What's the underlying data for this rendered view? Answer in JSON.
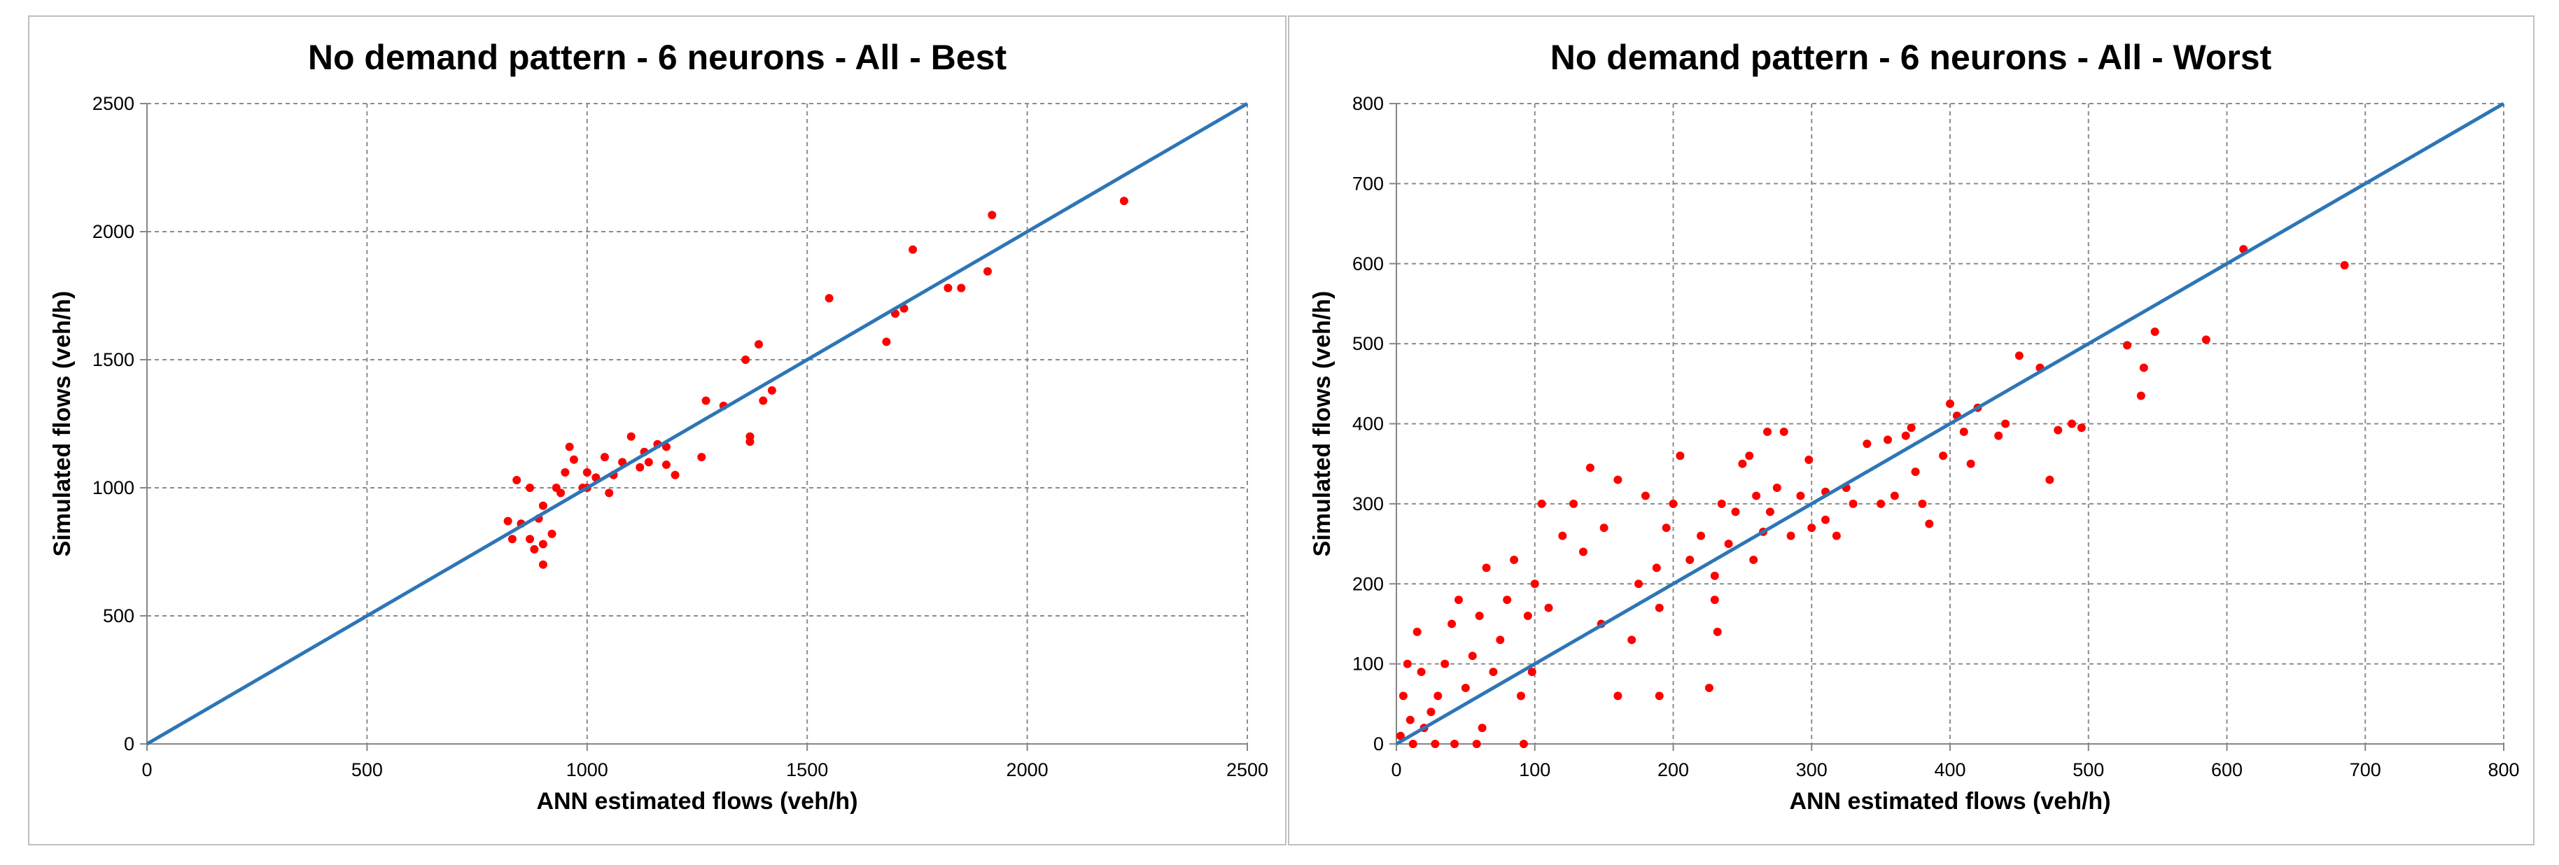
{
  "chart_data": [
    {
      "type": "scatter",
      "title": "No demand pattern - 6 neurons - All - Best",
      "xlabel": "ANN estimated flows (veh/h)",
      "ylabel": "Simulated flows (veh/h)",
      "xlim": [
        0,
        2500
      ],
      "ylim": [
        0,
        2500
      ],
      "xticks": [
        "0",
        "500",
        "1000",
        "1500",
        "2000",
        "2500"
      ],
      "yticks": [
        "0",
        "500",
        "1000",
        "1500",
        "2000",
        "2500"
      ],
      "grid": true,
      "legend": "none",
      "line": {
        "x": [
          0,
          2500
        ],
        "y": [
          0,
          2500
        ],
        "color": "#2e75b6"
      },
      "point_color": "#ff0000",
      "points": [
        [
          2220,
          2120
        ],
        [
          1920,
          2065
        ],
        [
          1740,
          1930
        ],
        [
          1910,
          1845
        ],
        [
          1850,
          1780
        ],
        [
          1820,
          1780
        ],
        [
          1720,
          1700
        ],
        [
          1700,
          1680
        ],
        [
          1680,
          1570
        ],
        [
          1550,
          1740
        ],
        [
          1390,
          1560
        ],
        [
          1360,
          1500
        ],
        [
          1420,
          1380
        ],
        [
          1400,
          1340
        ],
        [
          1370,
          1200
        ],
        [
          1370,
          1180
        ],
        [
          1310,
          1320
        ],
        [
          1270,
          1340
        ],
        [
          1180,
          1160
        ],
        [
          1160,
          1170
        ],
        [
          1140,
          1100
        ],
        [
          1130,
          1140
        ],
        [
          1100,
          1200
        ],
        [
          1080,
          1100
        ],
        [
          1060,
          1050
        ],
        [
          1040,
          1120
        ],
        [
          1020,
          1040
        ],
        [
          1000,
          1060
        ],
        [
          990,
          1000
        ],
        [
          970,
          1110
        ],
        [
          960,
          1160
        ],
        [
          950,
          1060
        ],
        [
          930,
          1000
        ],
        [
          900,
          930
        ],
        [
          890,
          880
        ],
        [
          870,
          1000
        ],
        [
          850,
          860
        ],
        [
          840,
          1030
        ],
        [
          830,
          800
        ],
        [
          820,
          870
        ],
        [
          900,
          780
        ],
        [
          870,
          800
        ],
        [
          920,
          820
        ],
        [
          900,
          700
        ],
        [
          880,
          760
        ],
        [
          1000,
          1000
        ],
        [
          1050,
          980
        ],
        [
          1120,
          1080
        ],
        [
          1180,
          1090
        ],
        [
          1200,
          1050
        ],
        [
          1260,
          1120
        ],
        [
          940,
          980
        ]
      ]
    },
    {
      "type": "scatter",
      "title": "No demand pattern - 6 neurons - All - Worst",
      "xlabel": "ANN estimated flows (veh/h)",
      "ylabel": "Simulated flows (veh/h)",
      "xlim": [
        0,
        800
      ],
      "ylim": [
        0,
        800
      ],
      "xticks": [
        "0",
        "100",
        "200",
        "300",
        "400",
        "500",
        "600",
        "700",
        "800"
      ],
      "yticks": [
        "0",
        "100",
        "200",
        "300",
        "400",
        "500",
        "600",
        "700",
        "800"
      ],
      "grid": true,
      "legend": "none",
      "line": {
        "x": [
          0,
          800
        ],
        "y": [
          0,
          800
        ],
        "color": "#2e75b6"
      },
      "point_color": "#ff0000",
      "points": [
        [
          685,
          598
        ],
        [
          612,
          618
        ],
        [
          585,
          505
        ],
        [
          548,
          515
        ],
        [
          528,
          498
        ],
        [
          540,
          470
        ],
        [
          538,
          435
        ],
        [
          495,
          395
        ],
        [
          488,
          400
        ],
        [
          478,
          392
        ],
        [
          472,
          330
        ],
        [
          465,
          470
        ],
        [
          450,
          485
        ],
        [
          440,
          400
        ],
        [
          435,
          385
        ],
        [
          420,
          420
        ],
        [
          415,
          350
        ],
        [
          410,
          390
        ],
        [
          405,
          410
        ],
        [
          400,
          425
        ],
        [
          395,
          360
        ],
        [
          385,
          275
        ],
        [
          380,
          300
        ],
        [
          375,
          340
        ],
        [
          372,
          395
        ],
        [
          368,
          385
        ],
        [
          360,
          310
        ],
        [
          355,
          380
        ],
        [
          340,
          375
        ],
        [
          330,
          300
        ],
        [
          325,
          320
        ],
        [
          318,
          260
        ],
        [
          310,
          315
        ],
        [
          300,
          270
        ],
        [
          298,
          355
        ],
        [
          292,
          310
        ],
        [
          285,
          260
        ],
        [
          280,
          390
        ],
        [
          275,
          320
        ],
        [
          270,
          290
        ],
        [
          268,
          390
        ],
        [
          265,
          265
        ],
        [
          260,
          310
        ],
        [
          258,
          230
        ],
        [
          255,
          360
        ],
        [
          250,
          350
        ],
        [
          245,
          290
        ],
        [
          240,
          250
        ],
        [
          235,
          300
        ],
        [
          232,
          140
        ],
        [
          230,
          210
        ],
        [
          226,
          70
        ],
        [
          220,
          260
        ],
        [
          212,
          230
        ],
        [
          205,
          360
        ],
        [
          200,
          300
        ],
        [
          195,
          270
        ],
        [
          190,
          170
        ],
        [
          188,
          220
        ],
        [
          180,
          310
        ],
        [
          175,
          200
        ],
        [
          170,
          130
        ],
        [
          160,
          330
        ],
        [
          150,
          270
        ],
        [
          148,
          150
        ],
        [
          140,
          345
        ],
        [
          135,
          240
        ],
        [
          128,
          300
        ],
        [
          120,
          260
        ],
        [
          110,
          170
        ],
        [
          105,
          300
        ],
        [
          100,
          200
        ],
        [
          98,
          90
        ],
        [
          95,
          160
        ],
        [
          90,
          60
        ],
        [
          85,
          230
        ],
        [
          80,
          180
        ],
        [
          75,
          130
        ],
        [
          70,
          90
        ],
        [
          65,
          220
        ],
        [
          60,
          160
        ],
        [
          55,
          110
        ],
        [
          50,
          70
        ],
        [
          45,
          180
        ],
        [
          40,
          150
        ],
        [
          35,
          100
        ],
        [
          30,
          60
        ],
        [
          25,
          40
        ],
        [
          20,
          20
        ],
        [
          15,
          140
        ],
        [
          10,
          30
        ],
        [
          5,
          60
        ],
        [
          3,
          10
        ],
        [
          8,
          100
        ],
        [
          12,
          0
        ],
        [
          18,
          90
        ],
        [
          28,
          0
        ],
        [
          42,
          0
        ],
        [
          58,
          0
        ],
        [
          62,
          20
        ],
        [
          92,
          0
        ],
        [
          160,
          60
        ],
        [
          190,
          60
        ],
        [
          230,
          180
        ],
        [
          350,
          300
        ],
        [
          310,
          280
        ]
      ]
    }
  ]
}
